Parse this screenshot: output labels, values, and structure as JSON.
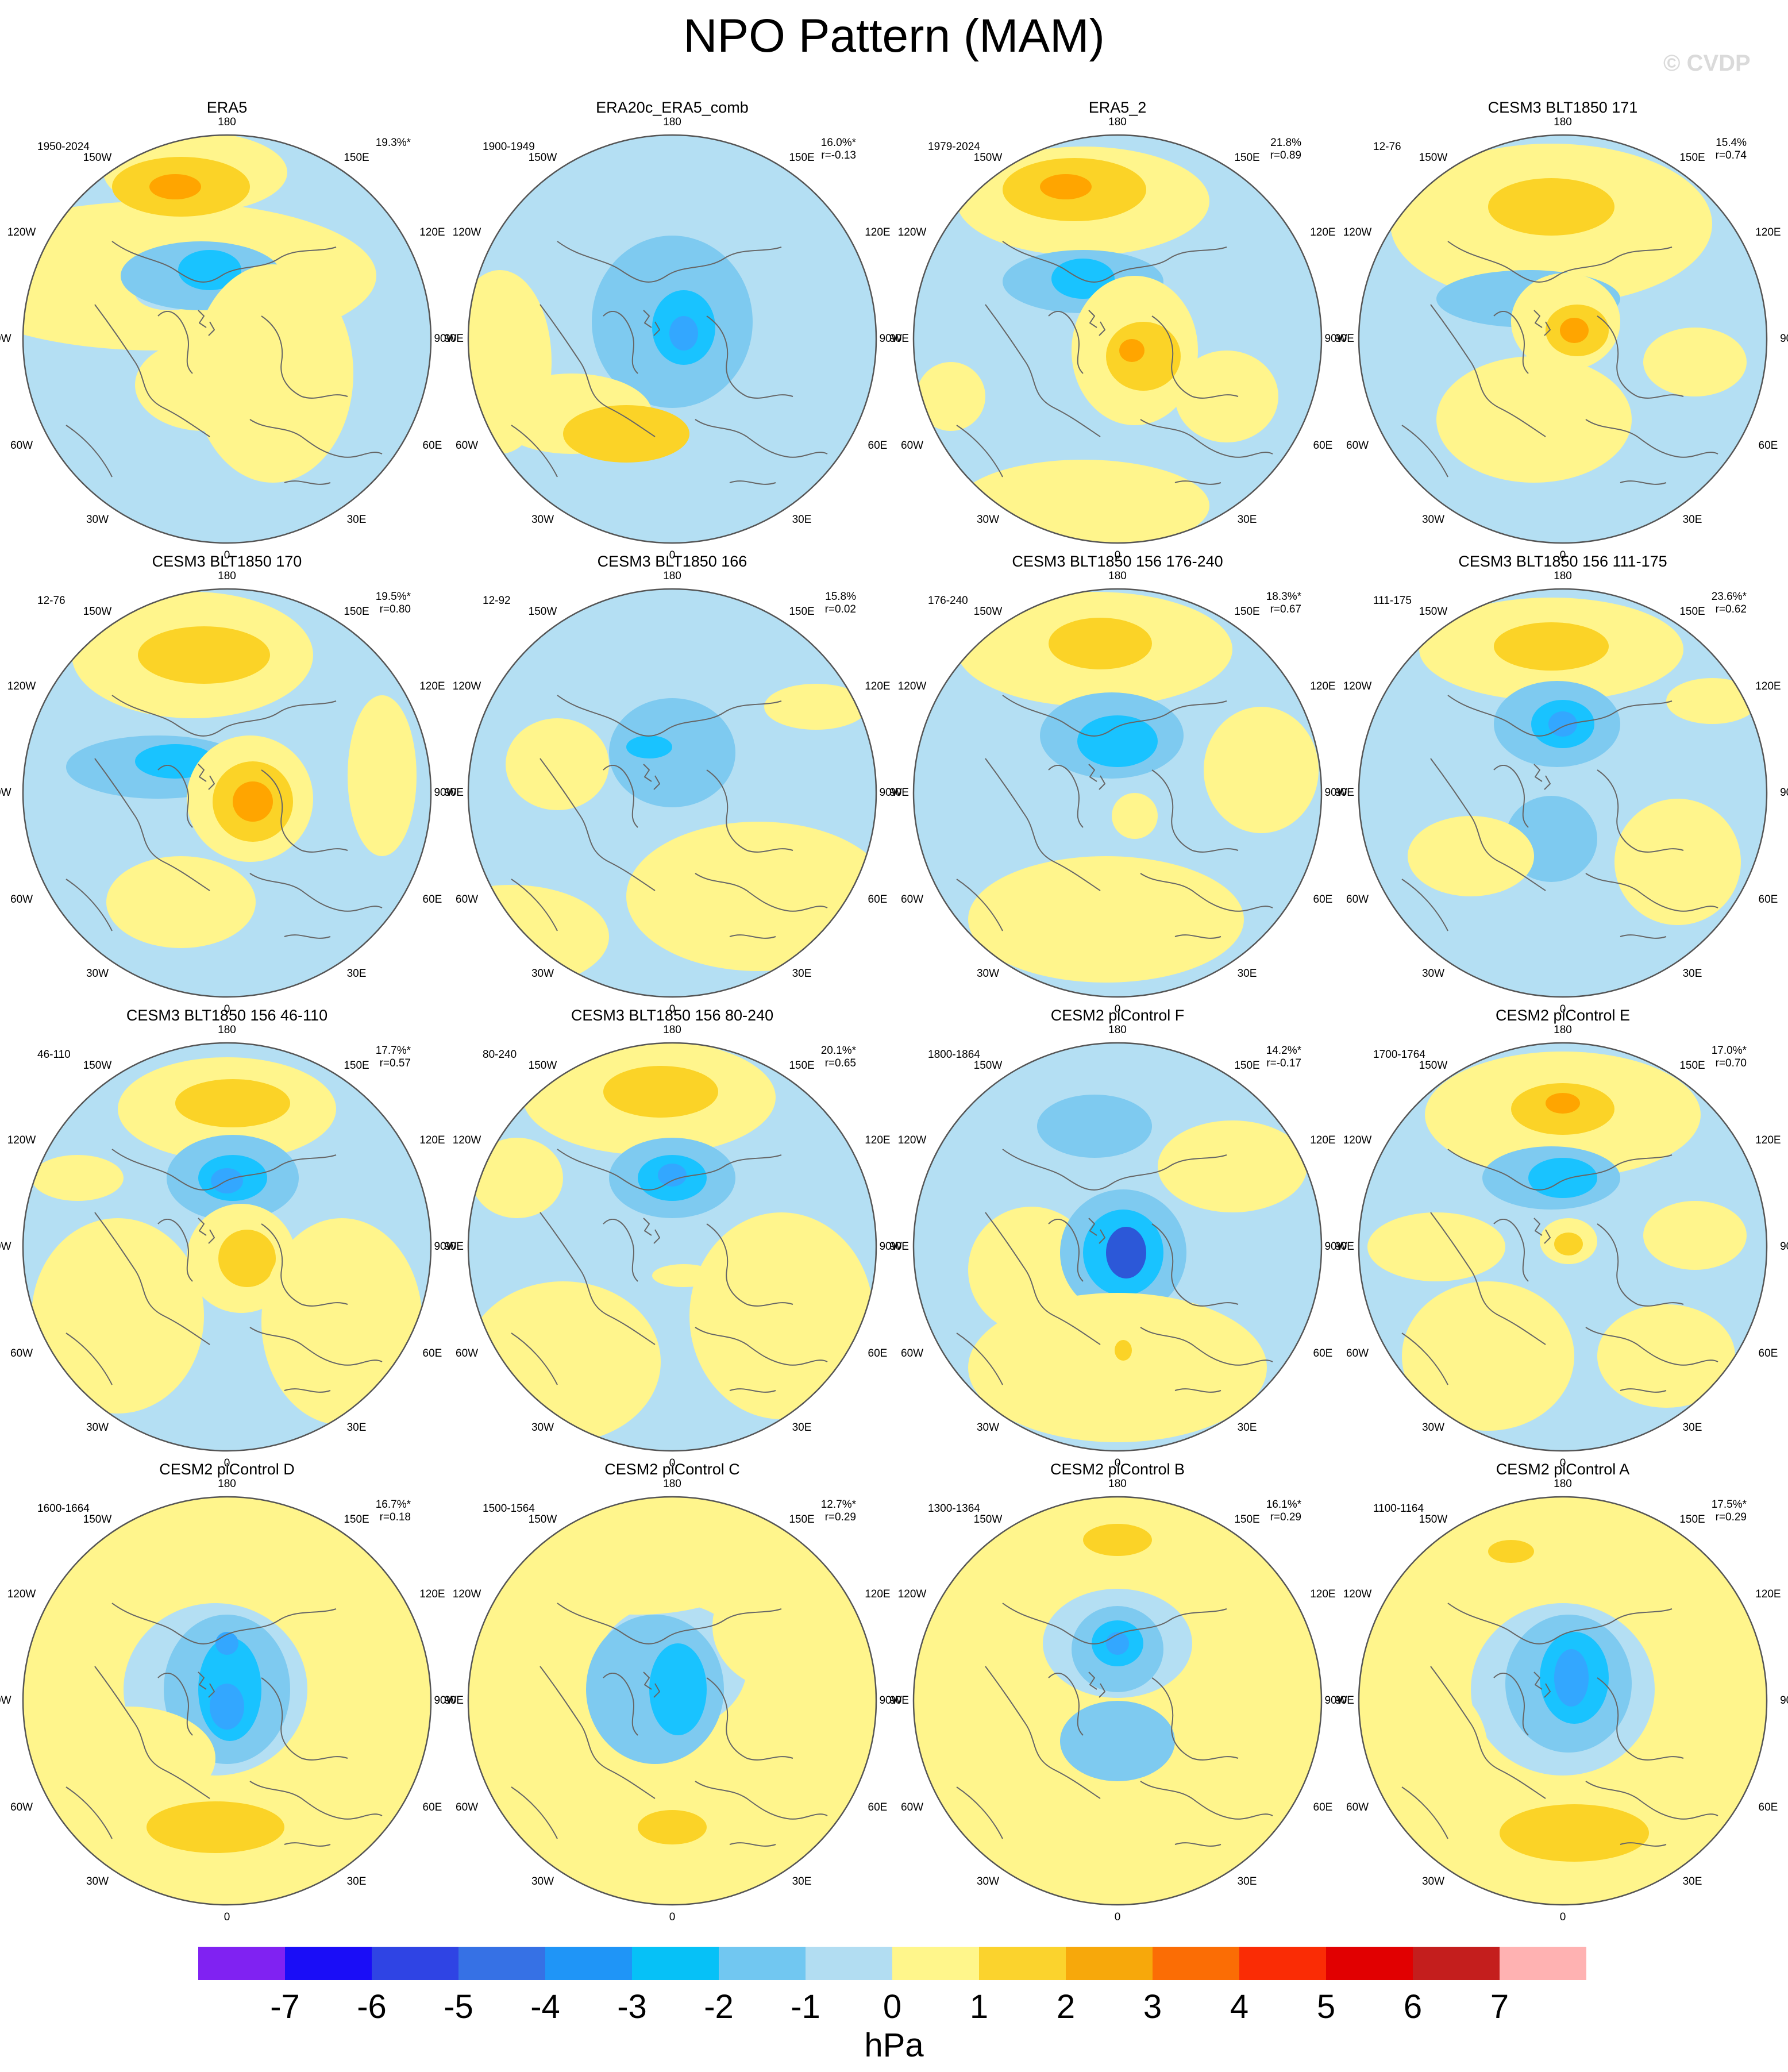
{
  "title": "NPO Pattern (MAM)",
  "watermark": "© CVDP",
  "colors": {
    "neg3": "#33a7ff",
    "neg2": "#19c3ff",
    "neg1": "#7ecaf0",
    "neg0": "#b4dff3",
    "pos0": "#fff58c",
    "pos1": "#fbd327",
    "pos2": "#ffa500",
    "pos3": "#ff7c00",
    "neg4": "#2c58d8"
  },
  "map_labels": {
    "top": "180",
    "bottom": "0",
    "left": "90W",
    "right": "90E",
    "upper_left_1": "150W",
    "upper_left_2": "120W",
    "upper_right_1": "150E",
    "upper_right_2": "120E",
    "lower_left_1": "60W",
    "lower_left_2": "30W",
    "lower_right_1": "60E",
    "lower_right_2": "30E"
  },
  "panels": [
    {
      "title": "ERA5",
      "years": "1950-2024",
      "pct": "19.3%*",
      "r": ""
    },
    {
      "title": "ERA20c_ERA5_comb",
      "years": "1900-1949",
      "pct": "16.0%*",
      "r": "r=-0.13"
    },
    {
      "title": "ERA5_2",
      "years": "1979-2024",
      "pct": "21.8%",
      "r": "r=0.89"
    },
    {
      "title": "CESM3 BLT1850 171",
      "years": "12-76",
      "pct": "15.4%",
      "r": "r=0.74"
    },
    {
      "title": "CESM3 BLT1850 170",
      "years": "12-76",
      "pct": "19.5%*",
      "r": "r=0.80"
    },
    {
      "title": "CESM3 BLT1850 166",
      "years": "12-92",
      "pct": "15.8%",
      "r": "r=0.02"
    },
    {
      "title": "CESM3 BLT1850 156 176-240",
      "years": "176-240",
      "pct": "18.3%*",
      "r": "r=0.67"
    },
    {
      "title": "CESM3 BLT1850 156 111-175",
      "years": "111-175",
      "pct": "23.6%*",
      "r": "r=0.62"
    },
    {
      "title": "CESM3 BLT1850 156 46-110",
      "years": "46-110",
      "pct": "17.7%*",
      "r": "r=0.57"
    },
    {
      "title": "CESM3 BLT1850 156 80-240",
      "years": "80-240",
      "pct": "20.1%*",
      "r": "r=0.65"
    },
    {
      "title": "CESM2 piControl F",
      "years": "1800-1864",
      "pct": "14.2%*",
      "r": "r=-0.17"
    },
    {
      "title": "CESM2 piControl E",
      "years": "1700-1764",
      "pct": "17.0%*",
      "r": "r=0.70"
    },
    {
      "title": "CESM2 piControl D",
      "years": "1600-1664",
      "pct": "16.7%*",
      "r": "r=0.18"
    },
    {
      "title": "CESM2 piControl C",
      "years": "1500-1564",
      "pct": "12.7%*",
      "r": "r=0.29"
    },
    {
      "title": "CESM2 piControl B",
      "years": "1300-1364",
      "pct": "16.1%*",
      "r": "r=0.29"
    },
    {
      "title": "CESM2 piControl A",
      "years": "1100-1164",
      "pct": "17.5%*",
      "r": "r=0.29"
    }
  ],
  "colorbar": {
    "units": "hPa",
    "labels": [
      "-7",
      "-6",
      "-5",
      "-4",
      "-3",
      "-2",
      "-1",
      "0",
      "1",
      "2",
      "3",
      "4",
      "5",
      "6",
      "7"
    ],
    "colors": [
      "#8022f2",
      "#1a0df7",
      "#2f44e4",
      "#3671e5",
      "#1f95f7",
      "#06c1f7",
      "#71c7f1",
      "#b2ddf2",
      "#fff68b",
      "#fbd32d",
      "#f7a80b",
      "#fb6d05",
      "#fa2c05",
      "#e10001",
      "#c41e1d",
      "#ffb2b2"
    ]
  }
}
